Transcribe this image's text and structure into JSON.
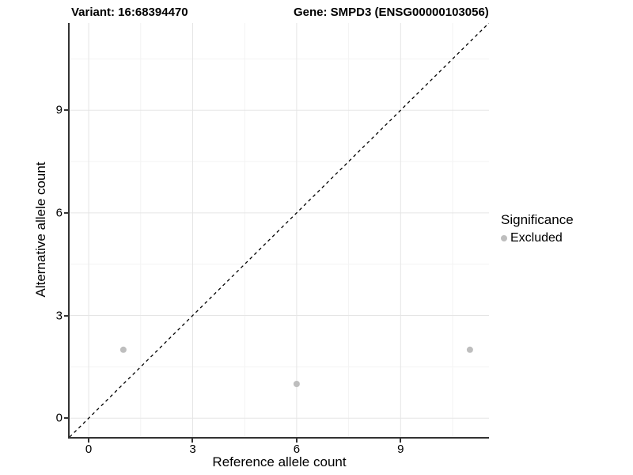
{
  "chart_data": {
    "type": "scatter",
    "titles": {
      "left": "Variant: 16:68394470",
      "right": "Gene: SMPD3 (ENSG00000103056)"
    },
    "xlabel": "Reference allele count",
    "ylabel": "Alternative allele count",
    "xlim": [
      -0.55,
      11.55
    ],
    "ylim": [
      -0.55,
      11.55
    ],
    "x_ticks": [
      0,
      3,
      6,
      9
    ],
    "y_ticks": [
      0,
      3,
      6,
      9
    ],
    "x_minor_ticks": [
      1.5,
      4.5,
      7.5,
      10.5
    ],
    "y_minor_ticks": [
      1.5,
      4.5,
      7.5,
      10.5
    ],
    "grid": "major+minor",
    "series": [
      {
        "name": "Excluded",
        "color": "#bebebe",
        "marker": "circle",
        "points": [
          [
            1,
            2
          ],
          [
            6,
            1
          ],
          [
            11,
            2
          ]
        ]
      }
    ],
    "reference_line": {
      "equation": "y = x",
      "style": "dashed",
      "color": "#000000"
    },
    "legend": {
      "title": "Significance",
      "position": "right",
      "items": [
        {
          "label": "Excluded",
          "color": "#bebebe"
        }
      ]
    }
  },
  "colors": {
    "background": "#ffffff",
    "axis_line": "#333333",
    "grid_major": "#e5e5e5",
    "grid_minor": "#f3f3f3",
    "point": "#bebebe",
    "text": "#000000"
  }
}
